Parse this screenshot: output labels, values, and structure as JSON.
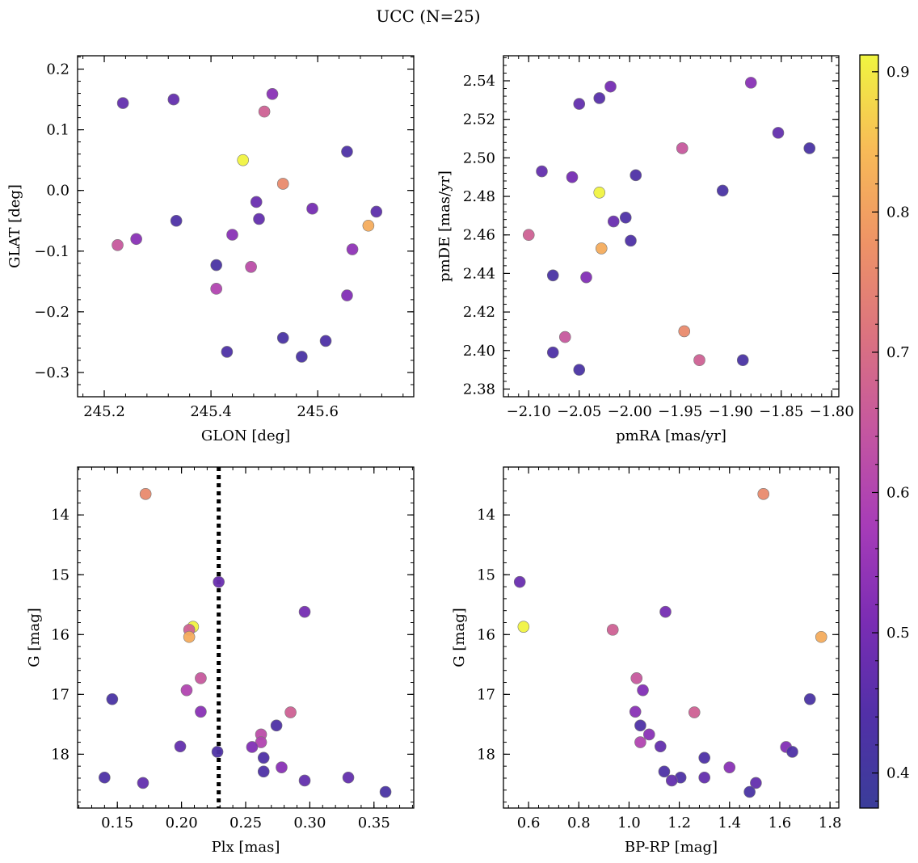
{
  "figure": {
    "title": "UCC (N=25)"
  },
  "colorbar": {
    "range": [
      0.375,
      0.912
    ],
    "ticks": [
      {
        "value": 0.4,
        "label": "0.4"
      },
      {
        "value": 0.5,
        "label": "0.5"
      },
      {
        "value": 0.6,
        "label": "0.6"
      },
      {
        "value": 0.7,
        "label": "0.7"
      },
      {
        "value": 0.8,
        "label": "0.8"
      },
      {
        "value": 0.9,
        "label": "0.9"
      }
    ],
    "colormap": "plasma",
    "stops": [
      "#3a3d99",
      "#5230a8",
      "#7b2db4",
      "#a73cb8",
      "#c456a0",
      "#db7280",
      "#ee9366",
      "#f8bb57",
      "#f0f540"
    ]
  },
  "chart_data": [
    {
      "type": "scatter",
      "title": "",
      "xlabel": "GLON [deg]",
      "ylabel": "GLAT [deg]",
      "xlim": [
        245.15,
        245.78
      ],
      "ylim": [
        -0.34,
        0.222
      ],
      "xticks": [
        {
          "value": 245.2,
          "label": "245.2"
        },
        {
          "value": 245.4,
          "label": "245.4"
        },
        {
          "value": 245.6,
          "label": "245.6"
        }
      ],
      "yticks": [
        {
          "value": 0.2,
          "label": "0.2"
        },
        {
          "value": 0.1,
          "label": "0.1"
        },
        {
          "value": 0.0,
          "label": "0.0"
        },
        {
          "value": -0.1,
          "label": "−0.1"
        },
        {
          "value": -0.2,
          "label": "−0.2"
        },
        {
          "value": -0.3,
          "label": "−0.3"
        }
      ],
      "invert_y": false,
      "points": [
        {
          "x": 245.235,
          "y": 0.144,
          "c": 0.47
        },
        {
          "x": 245.33,
          "y": 0.15,
          "c": 0.47
        },
        {
          "x": 245.515,
          "y": 0.159,
          "c": 0.53
        },
        {
          "x": 245.5,
          "y": 0.13,
          "c": 0.67
        },
        {
          "x": 245.655,
          "y": 0.064,
          "c": 0.43
        },
        {
          "x": 245.46,
          "y": 0.05,
          "c": 0.91
        },
        {
          "x": 245.535,
          "y": 0.011,
          "c": 0.76
        },
        {
          "x": 245.485,
          "y": -0.019,
          "c": 0.48
        },
        {
          "x": 245.59,
          "y": -0.03,
          "c": 0.5
        },
        {
          "x": 245.71,
          "y": -0.035,
          "c": 0.46
        },
        {
          "x": 245.49,
          "y": -0.047,
          "c": 0.47
        },
        {
          "x": 245.335,
          "y": -0.05,
          "c": 0.43
        },
        {
          "x": 245.695,
          "y": -0.058,
          "c": 0.82
        },
        {
          "x": 245.44,
          "y": -0.073,
          "c": 0.53
        },
        {
          "x": 245.26,
          "y": -0.08,
          "c": 0.53
        },
        {
          "x": 245.225,
          "y": -0.09,
          "c": 0.65
        },
        {
          "x": 245.665,
          "y": -0.097,
          "c": 0.54
        },
        {
          "x": 245.41,
          "y": -0.123,
          "c": 0.42
        },
        {
          "x": 245.475,
          "y": -0.126,
          "c": 0.62
        },
        {
          "x": 245.41,
          "y": -0.162,
          "c": 0.6
        },
        {
          "x": 245.655,
          "y": -0.173,
          "c": 0.52
        },
        {
          "x": 245.535,
          "y": -0.243,
          "c": 0.42
        },
        {
          "x": 245.615,
          "y": -0.248,
          "c": 0.43
        },
        {
          "x": 245.43,
          "y": -0.266,
          "c": 0.43
        },
        {
          "x": 245.57,
          "y": -0.274,
          "c": 0.42
        }
      ]
    },
    {
      "type": "scatter",
      "title": "",
      "xlabel": "pmRA [mas/yr]",
      "ylabel": "pmDE [mas/yr]",
      "xlim": [
        -2.125,
        -1.793
      ],
      "ylim": [
        2.376,
        2.553
      ],
      "xticks": [
        {
          "value": -2.1,
          "label": "−2.10"
        },
        {
          "value": -2.05,
          "label": "−2.05"
        },
        {
          "value": -2.0,
          "label": "−2.00"
        },
        {
          "value": -1.95,
          "label": "−1.95"
        },
        {
          "value": -1.9,
          "label": "−1.90"
        },
        {
          "value": -1.85,
          "label": "−1.85"
        },
        {
          "value": -1.8,
          "label": "−1.80"
        }
      ],
      "yticks": [
        {
          "value": 2.54,
          "label": "2.54"
        },
        {
          "value": 2.52,
          "label": "2.52"
        },
        {
          "value": 2.5,
          "label": "2.50"
        },
        {
          "value": 2.48,
          "label": "2.48"
        },
        {
          "value": 2.46,
          "label": "2.46"
        },
        {
          "value": 2.44,
          "label": "2.44"
        },
        {
          "value": 2.42,
          "label": "2.42"
        },
        {
          "value": 2.4,
          "label": "2.40"
        },
        {
          "value": 2.38,
          "label": "2.38"
        }
      ],
      "invert_y": false,
      "points": [
        {
          "x": -2.05,
          "y": 2.528,
          "c": 0.47
        },
        {
          "x": -2.03,
          "y": 2.531,
          "c": 0.45
        },
        {
          "x": -2.019,
          "y": 2.537,
          "c": 0.5
        },
        {
          "x": -1.88,
          "y": 2.539,
          "c": 0.53
        },
        {
          "x": -1.853,
          "y": 2.513,
          "c": 0.47
        },
        {
          "x": -1.822,
          "y": 2.505,
          "c": 0.42
        },
        {
          "x": -1.948,
          "y": 2.505,
          "c": 0.65
        },
        {
          "x": -2.087,
          "y": 2.493,
          "c": 0.47
        },
        {
          "x": -2.057,
          "y": 2.49,
          "c": 0.5
        },
        {
          "x": -1.994,
          "y": 2.491,
          "c": 0.43
        },
        {
          "x": -2.03,
          "y": 2.482,
          "c": 0.91
        },
        {
          "x": -1.908,
          "y": 2.483,
          "c": 0.42
        },
        {
          "x": -2.004,
          "y": 2.469,
          "c": 0.43
        },
        {
          "x": -2.016,
          "y": 2.467,
          "c": 0.48
        },
        {
          "x": -2.1,
          "y": 2.46,
          "c": 0.67
        },
        {
          "x": -1.999,
          "y": 2.457,
          "c": 0.43
        },
        {
          "x": -2.028,
          "y": 2.453,
          "c": 0.82
        },
        {
          "x": -2.076,
          "y": 2.439,
          "c": 0.42
        },
        {
          "x": -2.043,
          "y": 2.438,
          "c": 0.52
        },
        {
          "x": -2.064,
          "y": 2.407,
          "c": 0.65
        },
        {
          "x": -1.946,
          "y": 2.41,
          "c": 0.76
        },
        {
          "x": -2.076,
          "y": 2.399,
          "c": 0.43
        },
        {
          "x": -1.931,
          "y": 2.395,
          "c": 0.67
        },
        {
          "x": -1.888,
          "y": 2.395,
          "c": 0.42
        },
        {
          "x": -2.05,
          "y": 2.39,
          "c": 0.42
        }
      ]
    },
    {
      "type": "scatter",
      "title": "",
      "xlabel": "Plx [mas]",
      "ylabel": "G [mag]",
      "xlim": [
        0.119,
        0.381
      ],
      "ylim": [
        13.2,
        18.9
      ],
      "xticks": [
        {
          "value": 0.15,
          "label": "0.15"
        },
        {
          "value": 0.2,
          "label": "0.20"
        },
        {
          "value": 0.25,
          "label": "0.25"
        },
        {
          "value": 0.3,
          "label": "0.30"
        },
        {
          "value": 0.35,
          "label": "0.35"
        }
      ],
      "yticks": [
        {
          "value": 14,
          "label": "14"
        },
        {
          "value": 15,
          "label": "15"
        },
        {
          "value": 16,
          "label": "16"
        },
        {
          "value": 17,
          "label": "17"
        },
        {
          "value": 18,
          "label": "18"
        }
      ],
      "invert_y": true,
      "vline": {
        "x": 0.229,
        "style": "dotted"
      },
      "points": [
        {
          "x": 0.172,
          "y": 13.65,
          "c": 0.76
        },
        {
          "x": 0.229,
          "y": 15.12,
          "c": 0.48
        },
        {
          "x": 0.296,
          "y": 15.62,
          "c": 0.5
        },
        {
          "x": 0.209,
          "y": 15.87,
          "c": 0.91
        },
        {
          "x": 0.206,
          "y": 15.92,
          "c": 0.67
        },
        {
          "x": 0.206,
          "y": 16.04,
          "c": 0.82
        },
        {
          "x": 0.215,
          "y": 16.73,
          "c": 0.65
        },
        {
          "x": 0.204,
          "y": 16.93,
          "c": 0.6
        },
        {
          "x": 0.146,
          "y": 17.08,
          "c": 0.42
        },
        {
          "x": 0.215,
          "y": 17.29,
          "c": 0.53
        },
        {
          "x": 0.285,
          "y": 17.3,
          "c": 0.67
        },
        {
          "x": 0.274,
          "y": 17.52,
          "c": 0.43
        },
        {
          "x": 0.262,
          "y": 17.67,
          "c": 0.62
        },
        {
          "x": 0.262,
          "y": 17.8,
          "c": 0.6
        },
        {
          "x": 0.199,
          "y": 17.87,
          "c": 0.47
        },
        {
          "x": 0.255,
          "y": 17.88,
          "c": 0.52
        },
        {
          "x": 0.228,
          "y": 17.96,
          "c": 0.43
        },
        {
          "x": 0.264,
          "y": 18.06,
          "c": 0.43
        },
        {
          "x": 0.278,
          "y": 18.22,
          "c": 0.53
        },
        {
          "x": 0.264,
          "y": 18.29,
          "c": 0.43
        },
        {
          "x": 0.14,
          "y": 18.39,
          "c": 0.43
        },
        {
          "x": 0.33,
          "y": 18.39,
          "c": 0.47
        },
        {
          "x": 0.296,
          "y": 18.44,
          "c": 0.47
        },
        {
          "x": 0.17,
          "y": 18.48,
          "c": 0.47
        },
        {
          "x": 0.359,
          "y": 18.63,
          "c": 0.42
        }
      ]
    },
    {
      "type": "scatter",
      "title": "",
      "xlabel": "BP-RP [mag]",
      "ylabel": "G [mag]",
      "xlim": [
        0.5,
        1.835
      ],
      "ylim": [
        13.2,
        18.9
      ],
      "xticks": [
        {
          "value": 0.6,
          "label": "0.6"
        },
        {
          "value": 0.8,
          "label": "0.8"
        },
        {
          "value": 1.0,
          "label": "1.0"
        },
        {
          "value": 1.2,
          "label": "1.2"
        },
        {
          "value": 1.4,
          "label": "1.4"
        },
        {
          "value": 1.6,
          "label": "1.6"
        },
        {
          "value": 1.8,
          "label": "1.8"
        }
      ],
      "yticks": [
        {
          "value": 14,
          "label": "14"
        },
        {
          "value": 15,
          "label": "15"
        },
        {
          "value": 16,
          "label": "16"
        },
        {
          "value": 17,
          "label": "17"
        },
        {
          "value": 18,
          "label": "18"
        }
      ],
      "invert_y": true,
      "points": [
        {
          "x": 1.535,
          "y": 13.65,
          "c": 0.76
        },
        {
          "x": 0.565,
          "y": 15.12,
          "c": 0.48
        },
        {
          "x": 1.145,
          "y": 15.62,
          "c": 0.5
        },
        {
          "x": 0.58,
          "y": 15.87,
          "c": 0.91
        },
        {
          "x": 0.935,
          "y": 15.92,
          "c": 0.67
        },
        {
          "x": 1.765,
          "y": 16.04,
          "c": 0.82
        },
        {
          "x": 1.03,
          "y": 16.73,
          "c": 0.65
        },
        {
          "x": 1.055,
          "y": 16.93,
          "c": 0.52
        },
        {
          "x": 1.72,
          "y": 17.08,
          "c": 0.42
        },
        {
          "x": 1.025,
          "y": 17.29,
          "c": 0.53
        },
        {
          "x": 1.26,
          "y": 17.3,
          "c": 0.67
        },
        {
          "x": 1.045,
          "y": 17.52,
          "c": 0.43
        },
        {
          "x": 1.08,
          "y": 17.67,
          "c": 0.53
        },
        {
          "x": 1.045,
          "y": 17.8,
          "c": 0.6
        },
        {
          "x": 1.125,
          "y": 17.87,
          "c": 0.47
        },
        {
          "x": 1.625,
          "y": 17.88,
          "c": 0.52
        },
        {
          "x": 1.65,
          "y": 17.96,
          "c": 0.43
        },
        {
          "x": 1.3,
          "y": 18.06,
          "c": 0.43
        },
        {
          "x": 1.4,
          "y": 18.22,
          "c": 0.53
        },
        {
          "x": 1.14,
          "y": 18.29,
          "c": 0.43
        },
        {
          "x": 1.205,
          "y": 18.39,
          "c": 0.43
        },
        {
          "x": 1.3,
          "y": 18.39,
          "c": 0.47
        },
        {
          "x": 1.17,
          "y": 18.44,
          "c": 0.47
        },
        {
          "x": 1.505,
          "y": 18.48,
          "c": 0.47
        },
        {
          "x": 1.48,
          "y": 18.63,
          "c": 0.42
        }
      ]
    }
  ]
}
